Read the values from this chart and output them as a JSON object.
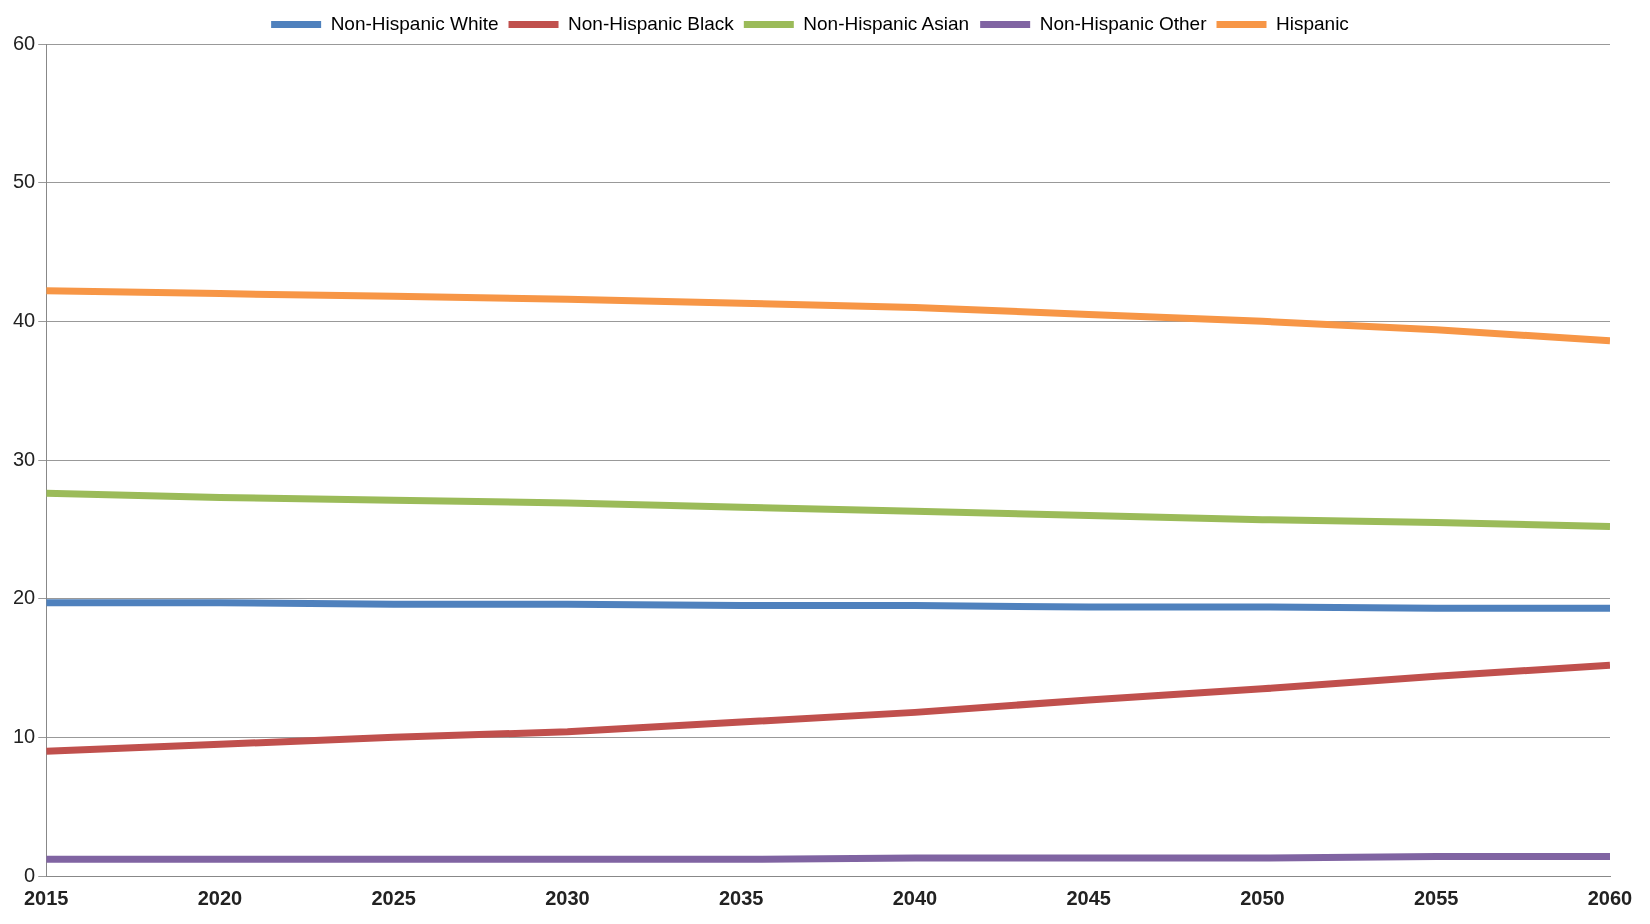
{
  "chart_data": {
    "type": "line",
    "x": [
      2015,
      2020,
      2025,
      2030,
      2035,
      2040,
      2045,
      2050,
      2055,
      2060
    ],
    "xlim": [
      2015,
      2060
    ],
    "xticks": [
      2015,
      2020,
      2025,
      2030,
      2035,
      2040,
      2045,
      2050,
      2055,
      2060
    ],
    "ylim": [
      0,
      60
    ],
    "yticks": [
      0,
      10,
      20,
      30,
      40,
      50,
      60
    ],
    "grid": "y",
    "legend": "top",
    "marker": "none",
    "line_style": "solid",
    "series": [
      {
        "name": "Non-Hispanic White",
        "color": "#4f81bd",
        "values": [
          19.7,
          19.7,
          19.6,
          19.6,
          19.5,
          19.5,
          19.4,
          19.4,
          19.3,
          19.3
        ]
      },
      {
        "name": "Non-Hispanic Black",
        "color": "#c0504d",
        "values": [
          9.0,
          9.5,
          10.0,
          10.4,
          11.1,
          11.8,
          12.7,
          13.5,
          14.4,
          15.2
        ]
      },
      {
        "name": "Non-Hispanic Asian",
        "color": "#9bbb59",
        "values": [
          27.6,
          27.3,
          27.1,
          26.9,
          26.6,
          26.3,
          26.0,
          25.7,
          25.5,
          25.2
        ]
      },
      {
        "name": "Non-Hispanic Other",
        "color": "#8064a2",
        "values": [
          1.2,
          1.2,
          1.2,
          1.2,
          1.2,
          1.3,
          1.3,
          1.3,
          1.4,
          1.4
        ]
      },
      {
        "name": "Hispanic",
        "color": "#f79646",
        "values": [
          42.2,
          42.0,
          41.8,
          41.6,
          41.3,
          41.0,
          40.5,
          40.0,
          39.4,
          38.6
        ]
      }
    ]
  }
}
